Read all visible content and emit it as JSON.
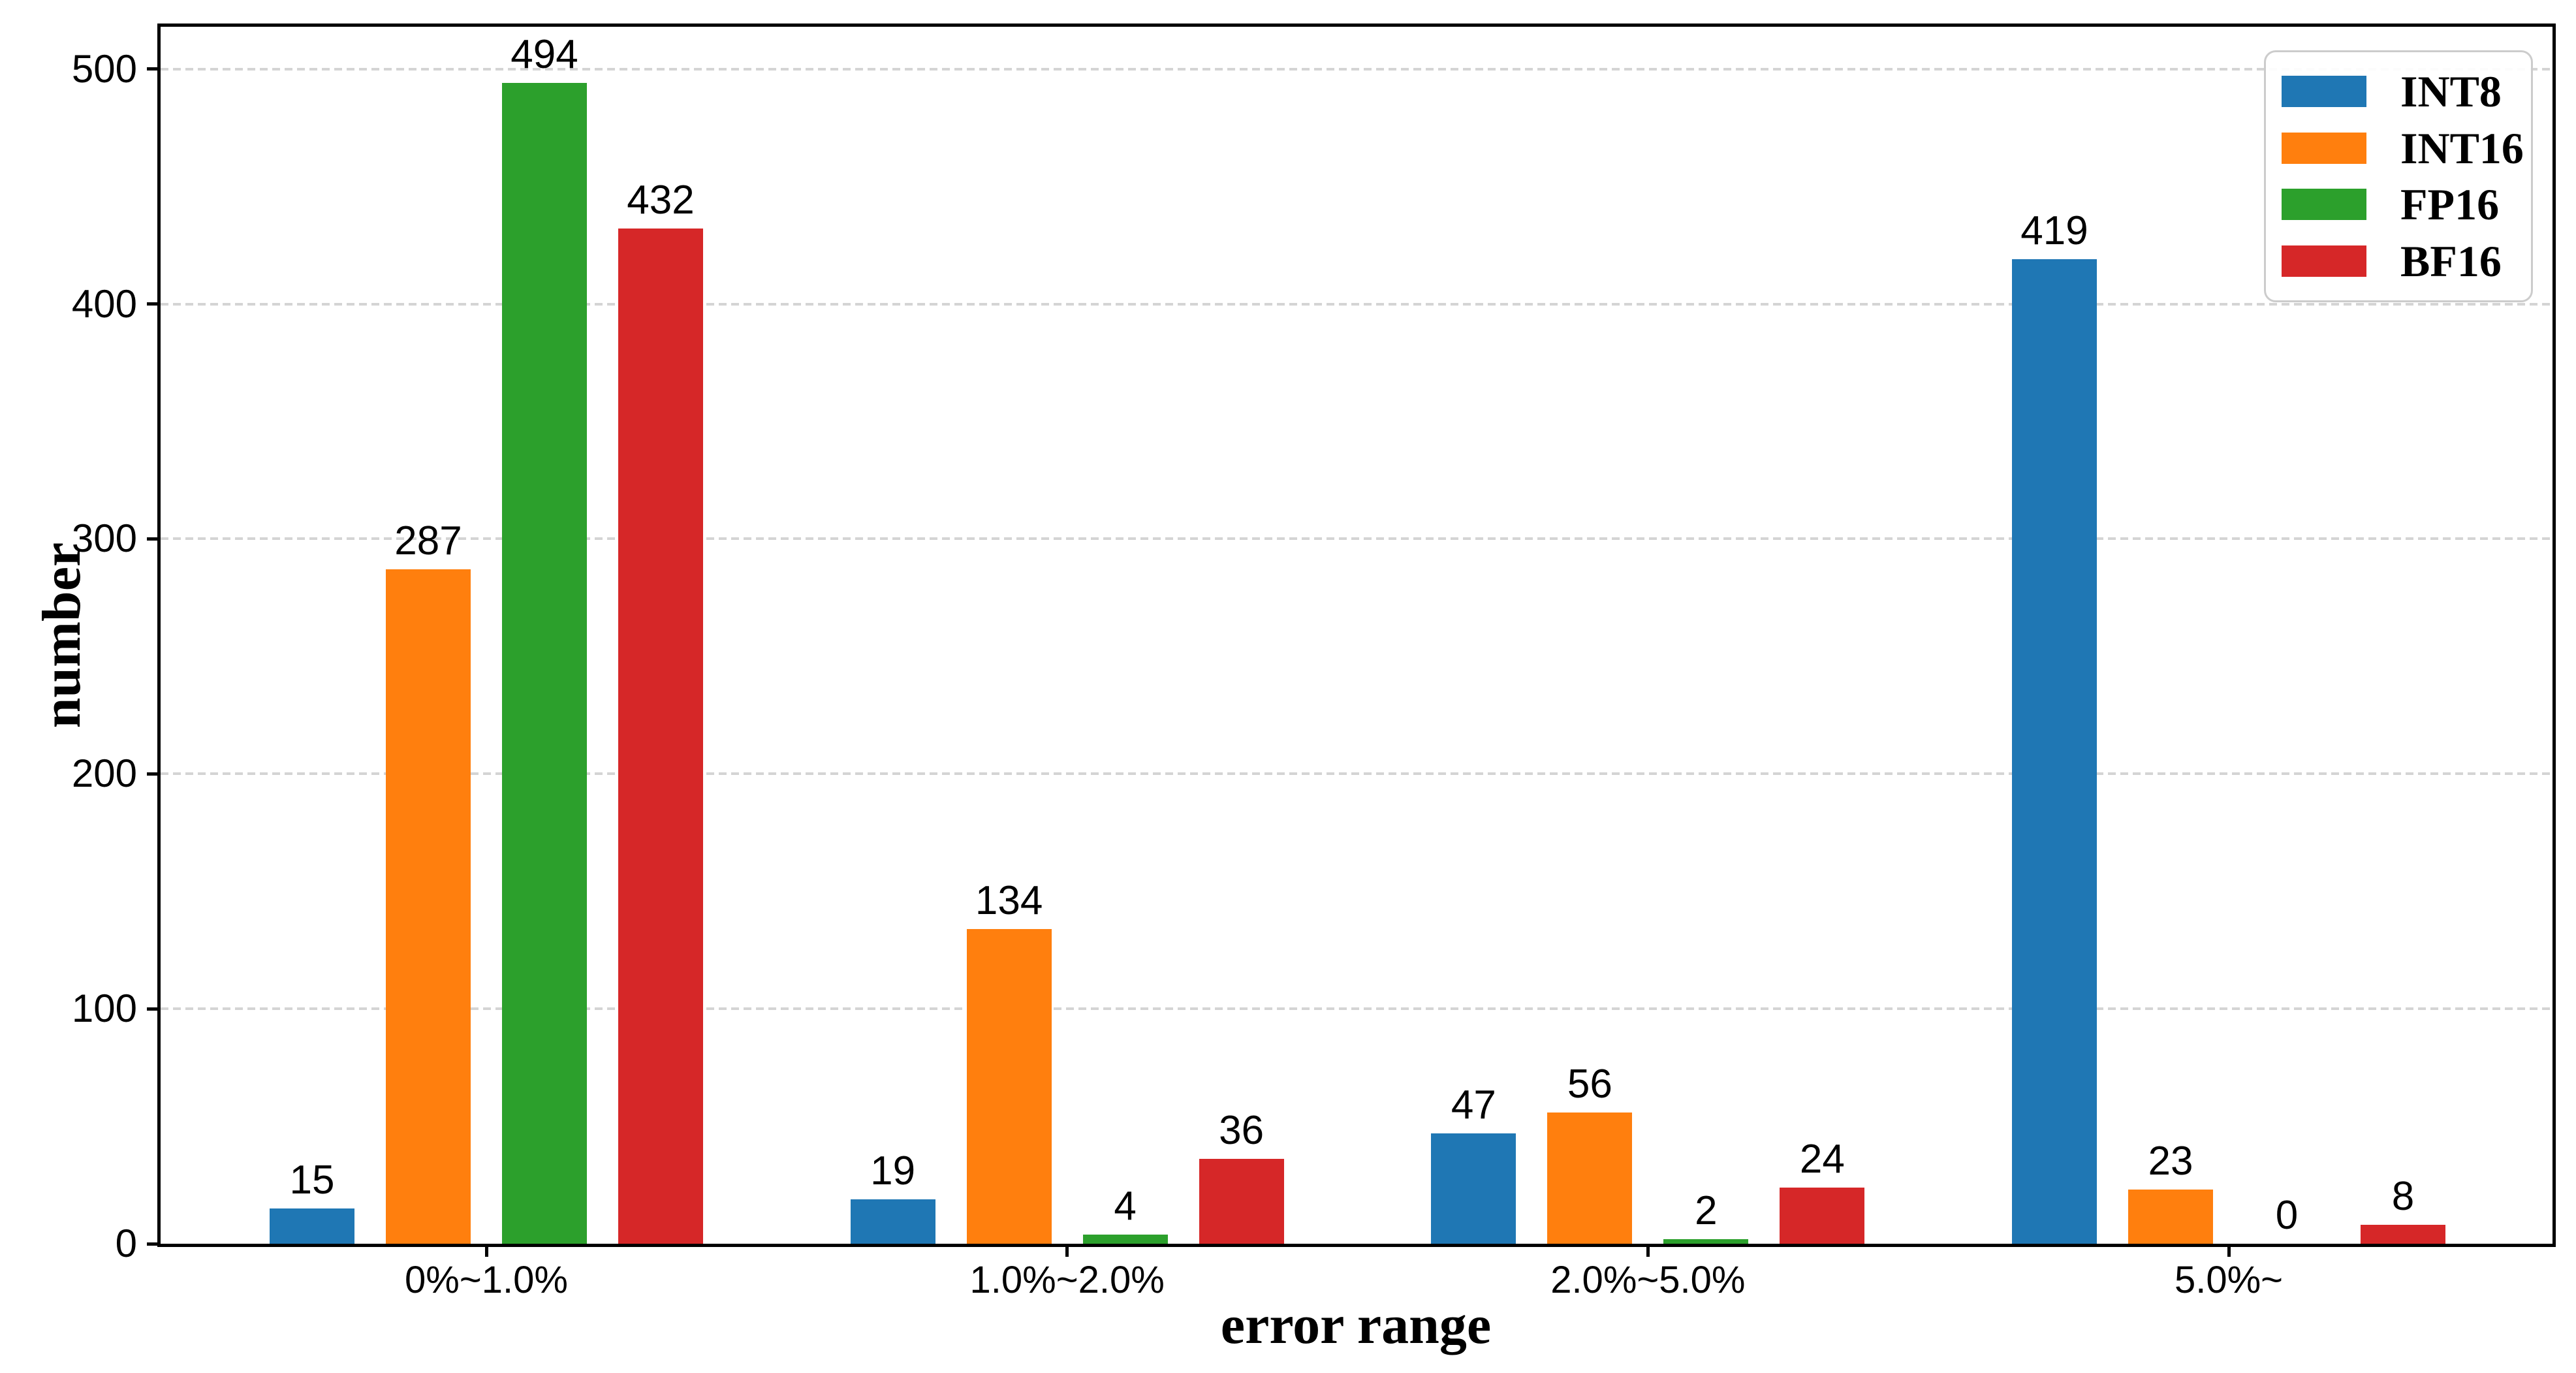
{
  "figure": {
    "background": "#ffffff",
    "spine_color": "#000000",
    "grid_color": "#d4d4d4",
    "text_color": "#000000",
    "legend_border_color": "#cccccc"
  },
  "chart_data": {
    "type": "bar",
    "title": "",
    "xlabel": "error range",
    "ylabel": "number",
    "categories": [
      "0%~1.0%",
      "1.0%~2.0%",
      "2.0%~5.0%",
      "5.0%~"
    ],
    "series": [
      {
        "name": "INT8",
        "color": "#1f77b4",
        "values": [
          15,
          19,
          47,
          419
        ]
      },
      {
        "name": "INT16",
        "color": "#ff7f0e",
        "values": [
          287,
          134,
          56,
          23
        ]
      },
      {
        "name": "FP16",
        "color": "#2ca02c",
        "values": [
          494,
          4,
          2,
          0
        ]
      },
      {
        "name": "BF16",
        "color": "#d62728",
        "values": [
          432,
          36,
          24,
          8
        ]
      }
    ],
    "bar_value_labels": [
      [
        "15",
        "19",
        "47",
        "419"
      ],
      [
        "287",
        "134",
        "56",
        "23"
      ],
      [
        "494",
        "4",
        "2",
        "0"
      ],
      [
        "432",
        "36",
        "24",
        "8"
      ]
    ],
    "yticks": [
      "0",
      "100",
      "200",
      "300",
      "400",
      "500"
    ],
    "ylim": [
      0,
      518
    ],
    "grid": "horizontal-dashed",
    "legend_position": "upper-right"
  }
}
